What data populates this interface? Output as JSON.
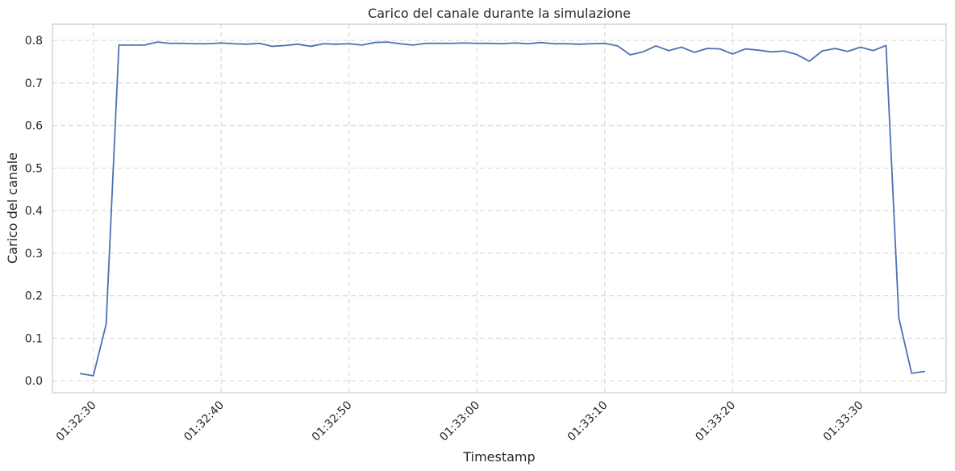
{
  "chart_data": {
    "type": "line",
    "title": "Carico del canale durante la simulazione",
    "xlabel": "Timestamp",
    "ylabel": "Carico del canale",
    "ylim": [
      -0.028,
      0.838
    ],
    "grid": true,
    "grid_style": "dashed",
    "y_ticks": [
      0.0,
      0.1,
      0.2,
      0.3,
      0.4,
      0.5,
      0.6,
      0.7,
      0.8
    ],
    "y_tick_labels": [
      "0.0",
      "0.1",
      "0.2",
      "0.3",
      "0.4",
      "0.5",
      "0.6",
      "0.7",
      "0.8"
    ],
    "x_ticks": [
      "01:32:30",
      "01:32:40",
      "01:32:50",
      "01:33:00",
      "01:33:10",
      "01:33:20",
      "01:33:30"
    ],
    "x_tick_labels": [
      "01:32:30",
      "01:32:40",
      "01:32:50",
      "01:33:00",
      "01:33:10",
      "01:33:20",
      "01:33:30"
    ],
    "xlim": [
      "01:32:26.8",
      "01:33:36.7"
    ],
    "series": [
      {
        "color": "#4c72b0",
        "x": [
          "01:32:29",
          "01:32:30",
          "01:32:31",
          "01:32:32",
          "01:32:33",
          "01:32:34",
          "01:32:35",
          "01:32:36",
          "01:32:37",
          "01:32:38",
          "01:32:39",
          "01:32:40",
          "01:32:41",
          "01:32:42",
          "01:32:43",
          "01:32:44",
          "01:32:45",
          "01:32:46",
          "01:32:47",
          "01:32:48",
          "01:32:49",
          "01:32:50",
          "01:32:51",
          "01:32:52",
          "01:32:53",
          "01:32:54",
          "01:32:55",
          "01:32:56",
          "01:32:57",
          "01:32:58",
          "01:32:59",
          "01:33:00",
          "01:33:01",
          "01:33:02",
          "01:33:03",
          "01:33:04",
          "01:33:05",
          "01:33:06",
          "01:33:07",
          "01:33:08",
          "01:33:09",
          "01:33:10",
          "01:33:11",
          "01:33:12",
          "01:33:13",
          "01:33:14",
          "01:33:15",
          "01:33:16",
          "01:33:17",
          "01:33:18",
          "01:33:19",
          "01:33:20",
          "01:33:21",
          "01:33:22",
          "01:33:23",
          "01:33:24",
          "01:33:25",
          "01:33:26",
          "01:33:27",
          "01:33:28",
          "01:33:29",
          "01:33:30",
          "01:33:31",
          "01:33:32",
          "01:33:33",
          "01:33:34",
          "01:33:35"
        ],
        "values": [
          0.017,
          0.012,
          0.133,
          0.789,
          0.789,
          0.789,
          0.796,
          0.793,
          0.793,
          0.792,
          0.792,
          0.794,
          0.792,
          0.791,
          0.793,
          0.786,
          0.788,
          0.791,
          0.786,
          0.792,
          0.791,
          0.792,
          0.789,
          0.795,
          0.796,
          0.792,
          0.789,
          0.793,
          0.793,
          0.793,
          0.794,
          0.793,
          0.793,
          0.792,
          0.794,
          0.792,
          0.795,
          0.792,
          0.792,
          0.791,
          0.792,
          0.793,
          0.787,
          0.766,
          0.773,
          0.787,
          0.776,
          0.784,
          0.772,
          0.781,
          0.78,
          0.768,
          0.78,
          0.777,
          0.773,
          0.775,
          0.767,
          0.751,
          0.775,
          0.781,
          0.774,
          0.784,
          0.776,
          0.788,
          0.148,
          0.018,
          0.022
        ]
      }
    ]
  }
}
